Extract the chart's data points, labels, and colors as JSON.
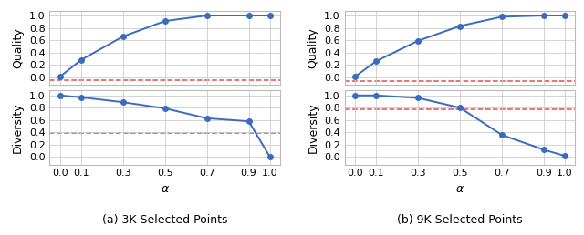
{
  "alpha": [
    0.0,
    0.1,
    0.3,
    0.5,
    0.7,
    0.9,
    1.0
  ],
  "left_quality": [
    0.01,
    0.28,
    0.66,
    0.91,
    1.0,
    1.0,
    1.0
  ],
  "left_diversity": [
    1.0,
    0.97,
    0.89,
    0.79,
    0.63,
    0.58,
    0.01
  ],
  "left_quality_hline": -0.05,
  "left_diversity_hline": 0.39,
  "right_quality": [
    0.01,
    0.26,
    0.59,
    0.83,
    0.98,
    1.0,
    1.0
  ],
  "right_diversity": [
    1.0,
    1.0,
    0.96,
    0.8,
    0.36,
    0.12,
    0.02
  ],
  "right_quality_hline": -0.065,
  "right_diversity_hline": 0.775,
  "left_caption": "(a) 3K Selected Points",
  "right_caption": "(b) 9K Selected Points",
  "xlabel": "α",
  "ylabel_quality": "Quality",
  "ylabel_diversity": "Diversity",
  "line_color": "#3a6bbf",
  "hline_color": "#e05050",
  "marker": "o",
  "markersize": 4,
  "linewidth": 1.4,
  "grid_color": "#cccccc",
  "ylim_quality": [
    -0.12,
    1.08
  ],
  "ylim_diversity": [
    -0.12,
    1.08
  ],
  "yticks": [
    0.0,
    0.2,
    0.4,
    0.6,
    0.8,
    1.0
  ],
  "xtick_labels": [
    "0.0",
    "0.1",
    "0.3",
    "0.5",
    "0.7",
    "0.9",
    "1.0"
  ],
  "tick_fontsize": 8,
  "label_fontsize": 9,
  "caption_fontsize": 9
}
